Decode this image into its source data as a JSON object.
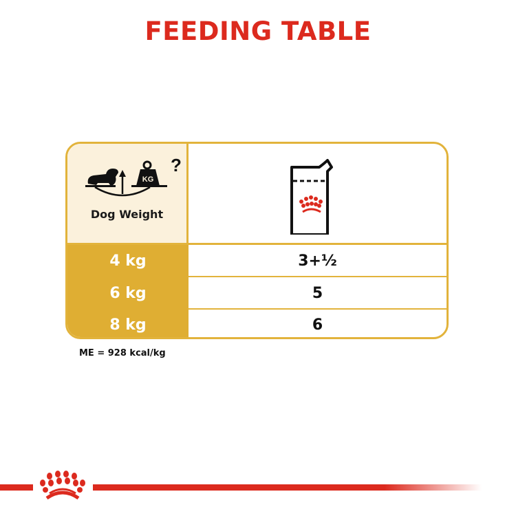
{
  "title": "FEEDING TABLE",
  "table": {
    "header_left_label": "Dog Weight",
    "header_left_icon": "dog-weight-scale-icon",
    "header_left_icon_text": "KG",
    "header_right_icon": "royal-canin-pouch-icon",
    "rows": [
      {
        "weight": "4 kg",
        "pouches": "3+½"
      },
      {
        "weight": "6 kg",
        "pouches": "5"
      },
      {
        "weight": "8 kg",
        "pouches": "6"
      }
    ]
  },
  "footnote": "ME = 928 kcal/kg",
  "colors": {
    "brand_red": "#dc2a1e",
    "gold": "#dfae33",
    "cream": "#fbf1dc"
  }
}
